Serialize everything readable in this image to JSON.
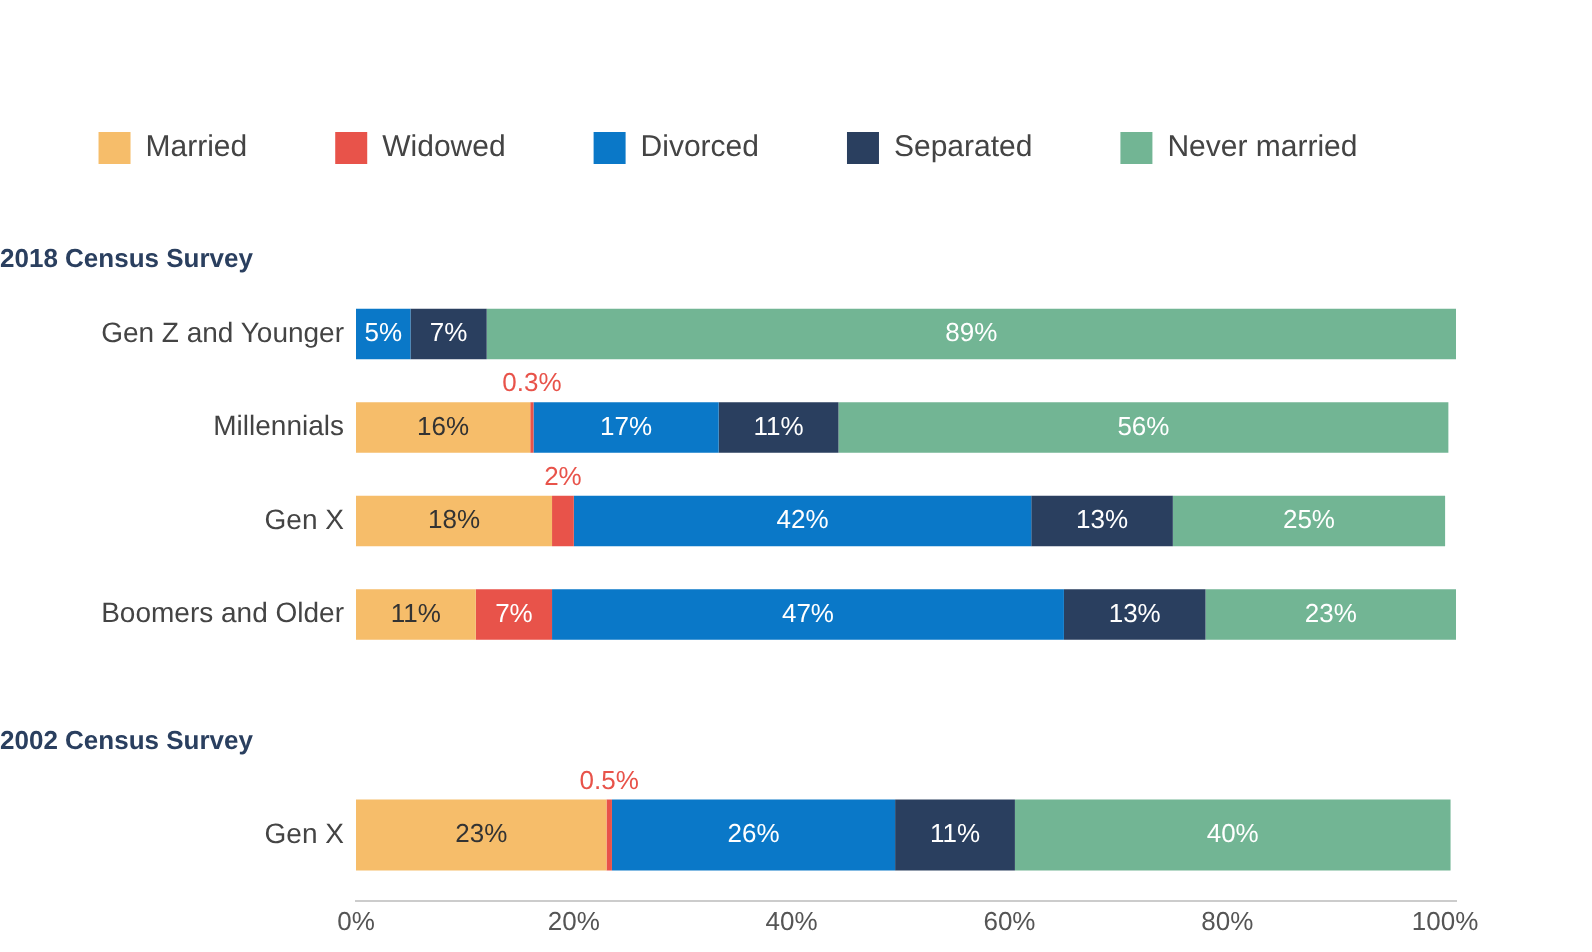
{
  "chart_data": [
    {
      "type": "bar",
      "orientation": "horizontal",
      "stacked": true,
      "title": "2018 Census Survey",
      "legend": "top",
      "grid": false,
      "tick_labels": "y",
      "categories": [
        "Gen Z and Younger",
        "Millennials",
        "Gen X",
        "Boomers and Older"
      ],
      "xlim": [
        0,
        101
      ],
      "series": [
        {
          "name": "Married",
          "color": "#f6bd6a",
          "values": [
            null,
            16,
            18,
            11
          ],
          "value_labels": [
            null,
            "16%",
            "18%",
            "11%"
          ]
        },
        {
          "name": "Widowed",
          "color": "#e8534a",
          "values": [
            null,
            0.3,
            2,
            7
          ],
          "value_labels": [
            null,
            "0.3%",
            "2%",
            "7%"
          ]
        },
        {
          "name": "Divorced",
          "color": "#0a78c8",
          "values": [
            5,
            17,
            42,
            47
          ],
          "value_labels": [
            "5%",
            "17%",
            "42%",
            "47%"
          ]
        },
        {
          "name": "Separated",
          "color": "#2a3f5f",
          "values": [
            7,
            11,
            13,
            13
          ],
          "value_labels": [
            "7%",
            "11%",
            "13%",
            "13%"
          ]
        },
        {
          "name": "Never married",
          "color": "#72b594",
          "values": [
            89,
            56,
            25,
            23
          ],
          "value_labels": [
            "89%",
            "56%",
            "25%",
            "23%"
          ]
        }
      ]
    },
    {
      "type": "bar",
      "orientation": "horizontal",
      "stacked": true,
      "title": "2002 Census Survey",
      "grid": false,
      "categories": [
        "Gen X"
      ],
      "xlim": [
        0,
        101
      ],
      "xticks": [
        {
          "value": 0,
          "label": "0%"
        },
        {
          "value": 20,
          "label": "20%"
        },
        {
          "value": 40,
          "label": "40%"
        },
        {
          "value": 60,
          "label": "60%"
        },
        {
          "value": 80,
          "label": "80%"
        },
        {
          "value": 100,
          "label": "100%"
        }
      ],
      "series": [
        {
          "color": "#f6bd6a",
          "values": [
            23
          ],
          "value_labels": [
            "23%"
          ]
        },
        {
          "color": "#e8534a",
          "values": [
            0.5
          ],
          "value_labels": [
            "0.5%"
          ]
        },
        {
          "color": "#0a78c8",
          "values": [
            26
          ],
          "value_labels": [
            "26%"
          ]
        },
        {
          "color": "#2a3f5f",
          "values": [
            11
          ],
          "value_labels": [
            "11%"
          ]
        },
        {
          "color": "#72b594",
          "values": [
            40
          ],
          "value_labels": [
            "40%"
          ]
        }
      ]
    }
  ]
}
